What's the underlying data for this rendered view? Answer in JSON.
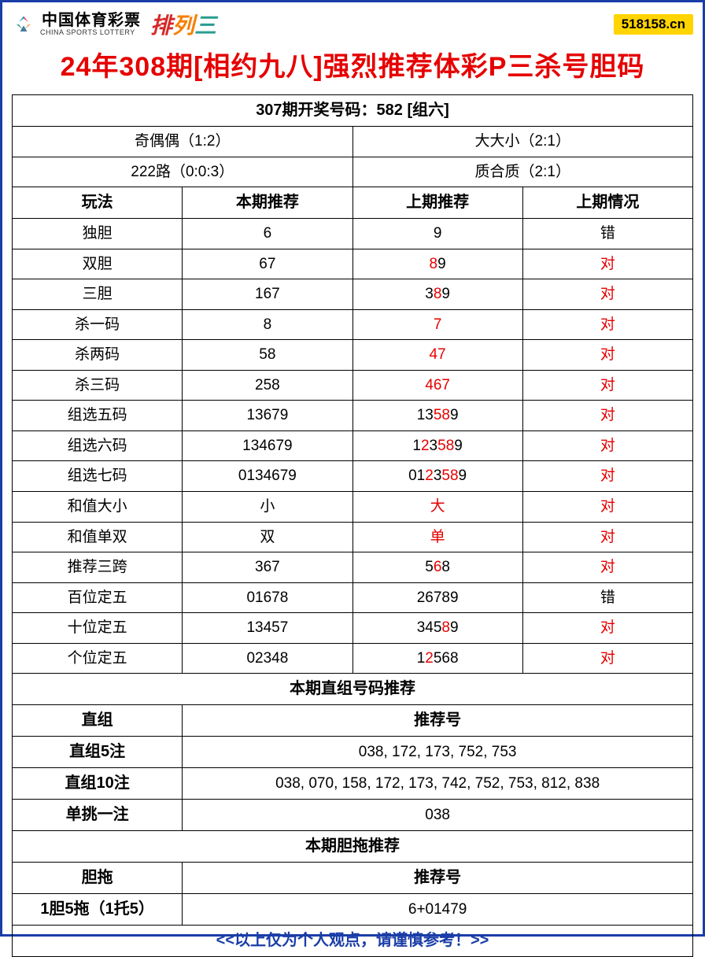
{
  "logo": {
    "cn": "中国体育彩票",
    "en": "CHINA SPORTS LOTTERY",
    "pailie": [
      "排",
      "列",
      "三"
    ]
  },
  "site_tag": "518158.cn",
  "title": "24年308期[相约九八]强烈推荐体彩P三杀号胆码",
  "draw_header": "307期开奖号码：582 [组六]",
  "summary": {
    "r1c1": "奇偶偶（1:2）",
    "r1c2": "大大小（2:1）",
    "r2c1": "222路（0:0:3）",
    "r2c2": "质合质（2:1）"
  },
  "columns": [
    "玩法",
    "本期推荐",
    "上期推荐",
    "上期情况"
  ],
  "rows": [
    {
      "name": "独胆",
      "cur": "6",
      "prev": [
        {
          "t": "9",
          "r": false
        }
      ],
      "status": "错"
    },
    {
      "name": "双胆",
      "cur": "67",
      "prev": [
        {
          "t": "8",
          "r": true
        },
        {
          "t": "9",
          "r": false
        }
      ],
      "status": "对"
    },
    {
      "name": "三胆",
      "cur": "167",
      "prev": [
        {
          "t": "3",
          "r": false
        },
        {
          "t": "8",
          "r": true
        },
        {
          "t": "9",
          "r": false
        }
      ],
      "status": "对"
    },
    {
      "name": "杀一码",
      "cur": "8",
      "prev": [
        {
          "t": "7",
          "r": true
        }
      ],
      "status": "对"
    },
    {
      "name": "杀两码",
      "cur": "58",
      "prev": [
        {
          "t": "4",
          "r": true
        },
        {
          "t": "7",
          "r": true
        }
      ],
      "status": "对"
    },
    {
      "name": "杀三码",
      "cur": "258",
      "prev": [
        {
          "t": "4",
          "r": true
        },
        {
          "t": "6",
          "r": true
        },
        {
          "t": "7",
          "r": true
        }
      ],
      "status": "对"
    },
    {
      "name": "组选五码",
      "cur": "13679",
      "prev": [
        {
          "t": "13",
          "r": false
        },
        {
          "t": "58",
          "r": true
        },
        {
          "t": "9",
          "r": false
        }
      ],
      "status": "对"
    },
    {
      "name": "组选六码",
      "cur": "134679",
      "prev": [
        {
          "t": "1",
          "r": false
        },
        {
          "t": "2",
          "r": true
        },
        {
          "t": "3",
          "r": false
        },
        {
          "t": "58",
          "r": true
        },
        {
          "t": "9",
          "r": false
        }
      ],
      "status": "对"
    },
    {
      "name": "组选七码",
      "cur": "0134679",
      "prev": [
        {
          "t": "01",
          "r": false
        },
        {
          "t": "2",
          "r": true
        },
        {
          "t": "3",
          "r": false
        },
        {
          "t": "58",
          "r": true
        },
        {
          "t": "9",
          "r": false
        }
      ],
      "status": "对"
    },
    {
      "name": "和值大小",
      "cur": "小",
      "prev": [
        {
          "t": "大",
          "r": true
        }
      ],
      "status": "对"
    },
    {
      "name": "和值单双",
      "cur": "双",
      "prev": [
        {
          "t": "单",
          "r": true
        }
      ],
      "status": "对"
    },
    {
      "name": "推荐三跨",
      "cur": "367",
      "prev": [
        {
          "t": "5",
          "r": false
        },
        {
          "t": "6",
          "r": true
        },
        {
          "t": "8",
          "r": false
        }
      ],
      "status": "对"
    },
    {
      "name": "百位定五",
      "cur": "01678",
      "prev": [
        {
          "t": "26789",
          "r": false
        }
      ],
      "status": "错"
    },
    {
      "name": "十位定五",
      "cur": "13457",
      "prev": [
        {
          "t": "345",
          "r": false
        },
        {
          "t": "8",
          "r": true
        },
        {
          "t": "9",
          "r": false
        }
      ],
      "status": "对"
    },
    {
      "name": "个位定五",
      "cur": "02348",
      "prev": [
        {
          "t": "1",
          "r": false
        },
        {
          "t": "2",
          "r": true
        },
        {
          "t": "568",
          "r": false
        }
      ],
      "status": "对"
    }
  ],
  "zz_header": "本期直组号码推荐",
  "zz_label_col": "直组",
  "zz_rec_col": "推荐号",
  "zz_rows": [
    {
      "name": "直组5注",
      "rec": "038, 172, 173, 752, 753"
    },
    {
      "name": "直组10注",
      "rec": "038, 070, 158, 172, 173, 742, 752, 753, 812, 838"
    },
    {
      "name": "单挑一注",
      "rec": "038"
    }
  ],
  "dt_header": "本期胆拖推荐",
  "dt_label_col": "胆拖",
  "dt_rec_col": "推荐号",
  "dt_rows": [
    {
      "name": "1胆5拖（1托5）",
      "rec": "6+01479"
    }
  ],
  "footer": "<<以上仅为个人观点，请谨慎参考！>>",
  "colors": {
    "border": "#1a3da8",
    "title": "#e60000",
    "hit": "#e60000",
    "tag_bg": "#ffd400"
  }
}
